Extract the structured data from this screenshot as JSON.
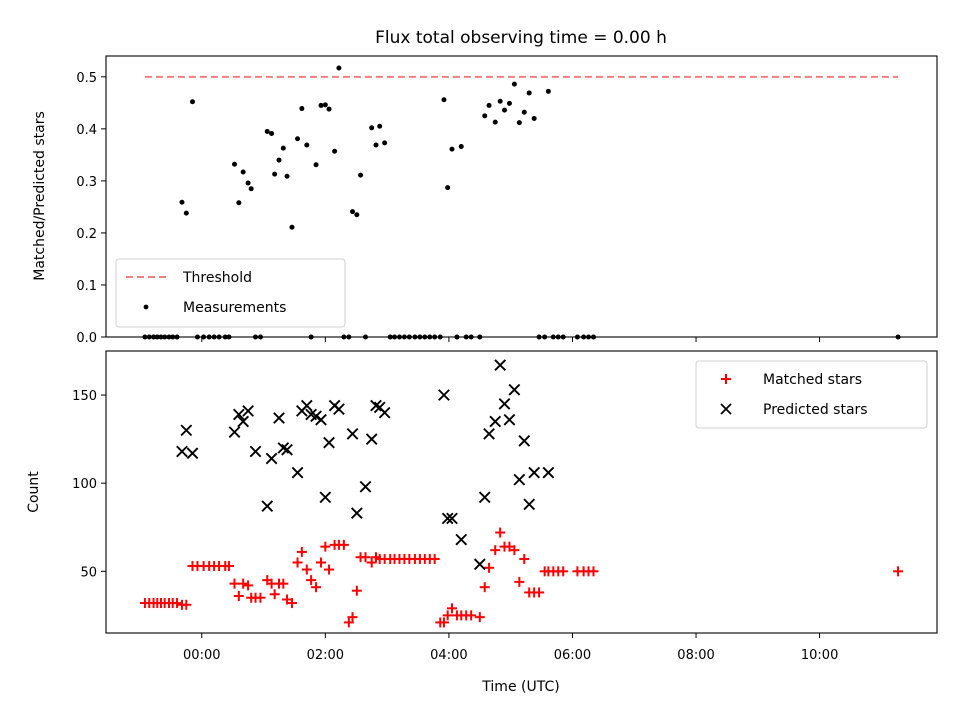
{
  "chart_data": [
    {
      "type": "scatter",
      "title": "Flux total observing time = 0.00 h",
      "xlabel": "",
      "ylabel": "Matched/Predicted stars",
      "ylim": [
        0.0,
        0.54
      ],
      "yticks": [
        0.0,
        0.1,
        0.2,
        0.3,
        0.4,
        0.5
      ],
      "ytick_labels": [
        "0.0",
        "0.1",
        "0.2",
        "0.3",
        "0.4",
        "0.5"
      ],
      "xlim_hours": [
        -1.55,
        11.9
      ],
      "legend": {
        "position": "lower-left",
        "entries": [
          {
            "label": "Threshold",
            "style": "dashed-line",
            "color": "#f08080"
          },
          {
            "label": "Measurements",
            "style": "dot",
            "color": "#000000"
          }
        ]
      },
      "series": [
        {
          "name": "Threshold",
          "kind": "line",
          "color": "#f08080",
          "x": [
            -0.92,
            11.27
          ],
          "y": [
            0.5,
            0.5
          ]
        },
        {
          "name": "Measurements",
          "kind": "dot",
          "color": "#000000",
          "x": [
            -0.92,
            -0.85,
            -0.78,
            -0.72,
            -0.66,
            -0.6,
            -0.53,
            -0.47,
            -0.4,
            -0.32,
            -0.25,
            -0.15,
            -0.07,
            0.03,
            0.12,
            0.2,
            0.28,
            0.38,
            0.44,
            0.53,
            0.6,
            0.67,
            0.75,
            0.8,
            0.87,
            0.95,
            1.06,
            1.13,
            1.18,
            1.25,
            1.32,
            1.38,
            1.46,
            1.55,
            1.62,
            1.7,
            1.77,
            1.85,
            1.93,
            2.0,
            2.06,
            2.15,
            2.22,
            2.3,
            2.38,
            2.44,
            2.51,
            2.57,
            2.65,
            2.75,
            2.82,
            2.88,
            2.96,
            3.05,
            3.12,
            3.2,
            3.28,
            3.36,
            3.45,
            3.53,
            3.61,
            3.69,
            3.77,
            3.86,
            3.92,
            3.98,
            4.05,
            4.13,
            4.2,
            4.28,
            4.36,
            4.5,
            4.58,
            4.65,
            4.75,
            4.83,
            4.9,
            4.98,
            5.06,
            5.14,
            5.22,
            5.3,
            5.38,
            5.46,
            5.55,
            5.61,
            5.69,
            5.77,
            5.85,
            6.08,
            6.18,
            6.26,
            6.34,
            11.27
          ],
          "y": [
            0.0,
            0.0,
            0.0,
            0.0,
            0.0,
            0.0,
            0.0,
            0.0,
            0.0,
            0.259,
            0.238,
            0.452,
            0.0,
            0.0,
            0.0,
            0.0,
            0.0,
            0.0,
            0.0,
            0.332,
            0.258,
            0.317,
            0.296,
            0.285,
            0.0,
            0.0,
            0.395,
            0.391,
            0.313,
            0.34,
            0.363,
            0.309,
            0.211,
            0.381,
            0.439,
            0.369,
            0.0,
            0.331,
            0.445,
            0.446,
            0.438,
            0.357,
            0.517,
            0.0,
            0.0,
            0.241,
            0.235,
            0.311,
            0.0,
            0.402,
            0.369,
            0.405,
            0.373,
            0.0,
            0.0,
            0.0,
            0.0,
            0.0,
            0.0,
            0.0,
            0.0,
            0.0,
            0.0,
            0.0,
            0.456,
            0.287,
            0.361,
            0.0,
            0.366,
            0.0,
            0.0,
            0.0,
            0.425,
            0.445,
            0.413,
            0.453,
            0.436,
            0.449,
            0.486,
            0.412,
            0.432,
            0.469,
            0.42,
            0.0,
            0.0,
            0.472,
            0.0,
            0.0,
            0.0,
            0.0,
            0.0,
            0.0,
            0.0,
            0.0
          ]
        }
      ]
    },
    {
      "type": "scatter",
      "title": "",
      "xlabel": "Time (UTC)",
      "ylabel": "Count",
      "ylim": [
        15,
        175
      ],
      "yticks": [
        50,
        100,
        150
      ],
      "ytick_labels": [
        "50",
        "100",
        "150"
      ],
      "xlim_hours": [
        -1.55,
        11.9
      ],
      "xticks_hours": [
        0,
        2,
        4,
        6,
        8,
        10
      ],
      "xtick_labels": [
        "00:00",
        "02:00",
        "04:00",
        "06:00",
        "08:00",
        "10:00"
      ],
      "legend": {
        "position": "upper-right",
        "entries": [
          {
            "label": "Matched stars",
            "style": "plus",
            "color": "#ff0000"
          },
          {
            "label": "Predicted stars",
            "style": "x",
            "color": "#000000"
          }
        ]
      },
      "series": [
        {
          "name": "Matched stars",
          "kind": "plus",
          "color": "#ff0000",
          "x": [
            -0.92,
            -0.85,
            -0.78,
            -0.72,
            -0.66,
            -0.6,
            -0.53,
            -0.47,
            -0.4,
            -0.32,
            -0.25,
            -0.15,
            -0.07,
            0.03,
            0.12,
            0.2,
            0.28,
            0.38,
            0.44,
            0.53,
            0.6,
            0.67,
            0.75,
            0.8,
            0.87,
            0.95,
            1.06,
            1.13,
            1.18,
            1.25,
            1.32,
            1.38,
            1.46,
            1.55,
            1.62,
            1.7,
            1.77,
            1.85,
            1.93,
            2.0,
            2.06,
            2.15,
            2.22,
            2.3,
            2.38,
            2.44,
            2.51,
            2.57,
            2.65,
            2.75,
            2.82,
            2.88,
            2.96,
            3.05,
            3.12,
            3.2,
            3.28,
            3.36,
            3.45,
            3.53,
            3.61,
            3.69,
            3.77,
            3.86,
            3.92,
            3.98,
            4.05,
            4.13,
            4.2,
            4.28,
            4.36,
            4.5,
            4.58,
            4.65,
            4.75,
            4.83,
            4.9,
            4.98,
            5.06,
            5.14,
            5.22,
            5.3,
            5.38,
            5.46,
            5.55,
            5.61,
            5.69,
            5.77,
            5.85,
            6.08,
            6.18,
            6.26,
            6.34,
            11.27
          ],
          "y": [
            32,
            32,
            32,
            32,
            32,
            32,
            32,
            32,
            32,
            31,
            31,
            53,
            53,
            53,
            53,
            53,
            53,
            53,
            53,
            43,
            36,
            43,
            42,
            35,
            35,
            35,
            45,
            43,
            37,
            43,
            43,
            34,
            32,
            55,
            61,
            51,
            45,
            41,
            55,
            64,
            51,
            65,
            65,
            65,
            21,
            24,
            39,
            58,
            58,
            55,
            58,
            57,
            57,
            57,
            57,
            57,
            57,
            57,
            57,
            57,
            57,
            57,
            57,
            21,
            21,
            25,
            29,
            25,
            25,
            25,
            25,
            24,
            41,
            52,
            62,
            72,
            64,
            64,
            62,
            44,
            57,
            38,
            38,
            38,
            50,
            50,
            50,
            50,
            50,
            50,
            50,
            50,
            50,
            50
          ]
        },
        {
          "name": "Predicted stars",
          "kind": "x",
          "color": "#000000",
          "x": [
            -0.32,
            -0.25,
            -0.15,
            0.53,
            0.6,
            0.67,
            0.75,
            0.87,
            1.06,
            1.13,
            1.25,
            1.32,
            1.38,
            1.55,
            1.62,
            1.7,
            1.77,
            1.85,
            1.93,
            2.0,
            2.06,
            2.15,
            2.22,
            2.44,
            2.51,
            2.65,
            2.75,
            2.82,
            2.88,
            2.96,
            3.92,
            3.98,
            4.05,
            4.2,
            4.5,
            4.58,
            4.65,
            4.75,
            4.83,
            4.9,
            4.98,
            5.06,
            5.14,
            5.22,
            5.3,
            5.38,
            5.61
          ],
          "y": [
            118,
            130,
            117,
            129,
            139,
            135,
            141,
            118,
            87,
            114,
            137,
            120,
            119,
            106,
            141,
            144,
            139,
            138,
            136,
            92,
            123,
            144,
            142,
            128,
            83,
            98,
            125,
            144,
            143,
            140,
            150,
            80,
            80,
            68,
            54,
            92,
            128,
            135,
            167,
            145,
            136,
            153,
            102,
            124,
            88,
            106,
            106
          ]
        }
      ]
    }
  ]
}
